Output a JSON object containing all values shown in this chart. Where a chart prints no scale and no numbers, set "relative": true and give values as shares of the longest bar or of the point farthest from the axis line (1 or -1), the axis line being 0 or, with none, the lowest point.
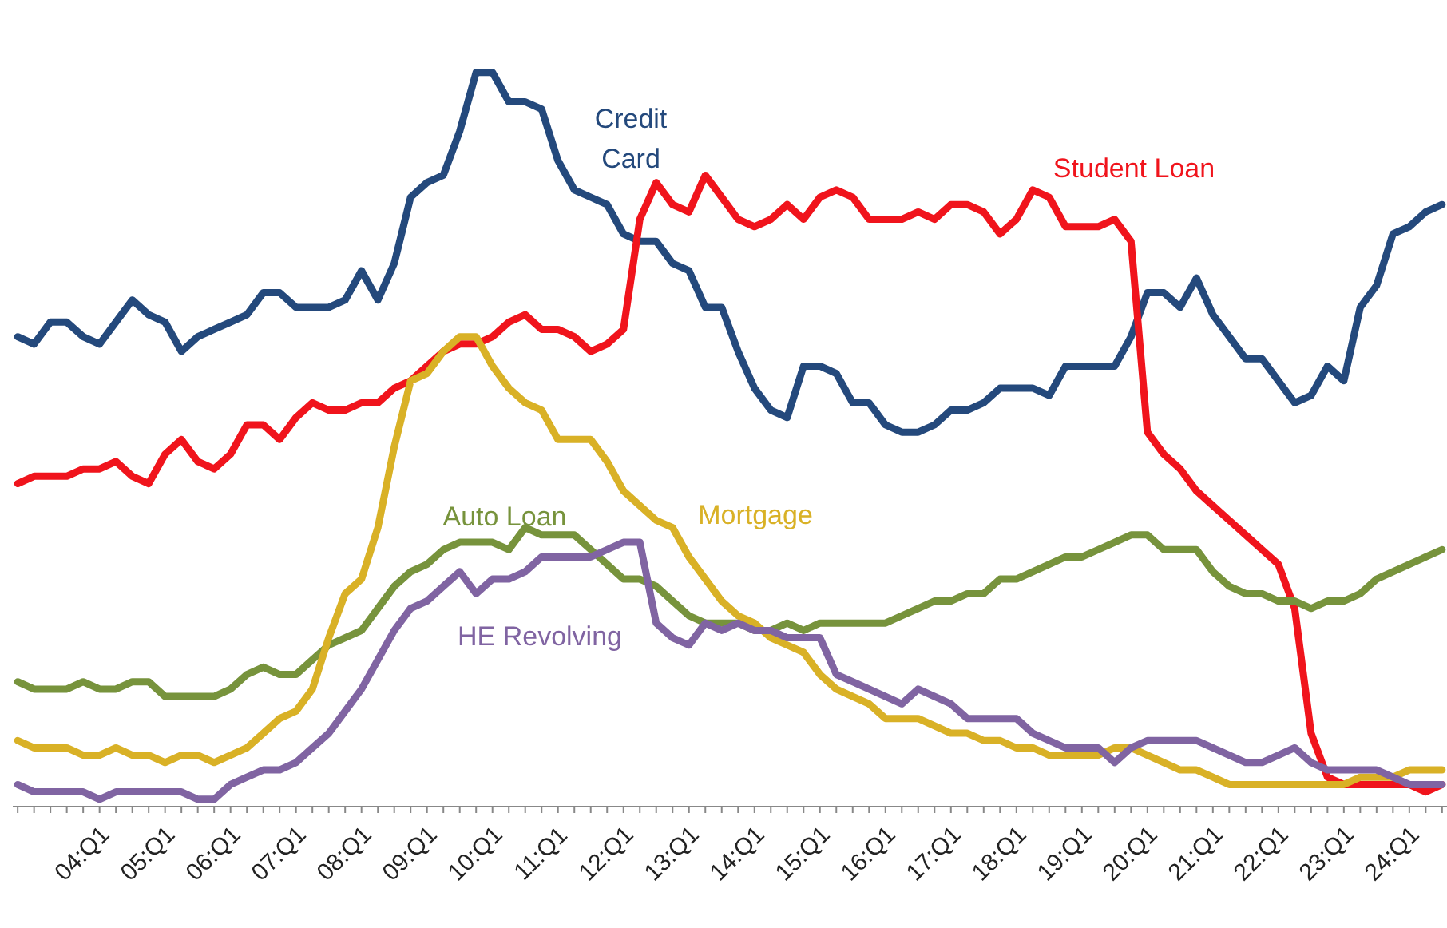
{
  "chart_data": {
    "type": "line",
    "relative": true,
    "categories": [
      null,
      null,
      null,
      null,
      "04:Q1",
      null,
      null,
      null,
      "05:Q1",
      null,
      null,
      null,
      "06:Q1",
      null,
      null,
      null,
      "07:Q1",
      null,
      null,
      null,
      "08:Q1",
      null,
      null,
      null,
      "09:Q1",
      null,
      null,
      null,
      "10:Q1",
      null,
      null,
      null,
      "11:Q1",
      null,
      null,
      null,
      "12:Q1",
      null,
      null,
      null,
      "13:Q1",
      null,
      null,
      null,
      "14:Q1",
      null,
      null,
      null,
      "15:Q1",
      null,
      null,
      null,
      "16:Q1",
      null,
      null,
      null,
      "17:Q1",
      null,
      null,
      null,
      "18:Q1",
      null,
      null,
      null,
      "19:Q1",
      null,
      null,
      null,
      "20:Q1",
      null,
      null,
      null,
      "21:Q1",
      null,
      null,
      null,
      "22:Q1",
      null,
      null,
      null,
      "23:Q1",
      null,
      null,
      null,
      "24:Q1",
      null,
      null,
      null
    ],
    "series": [
      {
        "name": "Credit Card",
        "color": "#24497c",
        "values": [
          0.64,
          0.63,
          0.66,
          0.66,
          0.64,
          0.63,
          0.66,
          0.69,
          0.67,
          0.66,
          0.62,
          0.64,
          0.65,
          0.66,
          0.67,
          0.7,
          0.7,
          0.68,
          0.68,
          0.68,
          0.69,
          0.73,
          0.69,
          0.74,
          0.83,
          0.85,
          0.86,
          0.92,
          1.0,
          1.0,
          0.96,
          0.96,
          0.95,
          0.88,
          0.84,
          0.83,
          0.82,
          0.78,
          0.77,
          0.77,
          0.74,
          0.73,
          0.68,
          0.68,
          0.62,
          0.57,
          0.54,
          0.53,
          0.6,
          0.6,
          0.59,
          0.55,
          0.55,
          0.52,
          0.51,
          0.51,
          0.52,
          0.54,
          0.54,
          0.55,
          0.57,
          0.57,
          0.57,
          0.56,
          0.6,
          0.6,
          0.6,
          0.6,
          0.64,
          0.7,
          0.7,
          0.68,
          0.72,
          0.67,
          0.64,
          0.61,
          0.61,
          0.58,
          0.55,
          0.56,
          0.6,
          0.58,
          0.68,
          0.71,
          0.78,
          0.79,
          0.81,
          0.82
        ]
      },
      {
        "name": "Student Loan",
        "color": "#f0141c",
        "values": [
          0.44,
          0.45,
          0.45,
          0.45,
          0.46,
          0.46,
          0.47,
          0.45,
          0.44,
          0.48,
          0.5,
          0.47,
          0.46,
          0.48,
          0.52,
          0.52,
          0.5,
          0.53,
          0.55,
          0.54,
          0.54,
          0.55,
          0.55,
          0.57,
          0.58,
          0.6,
          0.62,
          0.63,
          0.63,
          0.64,
          0.66,
          0.67,
          0.65,
          0.65,
          0.64,
          0.62,
          0.63,
          0.65,
          0.8,
          0.85,
          0.82,
          0.81,
          0.86,
          0.83,
          0.8,
          0.79,
          0.8,
          0.82,
          0.8,
          0.83,
          0.84,
          0.83,
          0.8,
          0.8,
          0.8,
          0.81,
          0.8,
          0.82,
          0.82,
          0.81,
          0.78,
          0.8,
          0.84,
          0.83,
          0.79,
          0.79,
          0.79,
          0.8,
          0.77,
          0.51,
          0.48,
          0.46,
          0.43,
          0.41,
          0.39,
          0.37,
          0.35,
          0.33,
          0.27,
          0.1,
          0.04,
          0.03,
          0.03,
          0.03,
          0.03,
          0.03,
          0.02,
          0.03
        ]
      },
      {
        "name": "Auto Loan",
        "color": "#77933c",
        "values": [
          0.17,
          0.16,
          0.16,
          0.16,
          0.17,
          0.16,
          0.16,
          0.17,
          0.17,
          0.15,
          0.15,
          0.15,
          0.15,
          0.16,
          0.18,
          0.19,
          0.18,
          0.18,
          0.2,
          0.22,
          0.23,
          0.24,
          0.27,
          0.3,
          0.32,
          0.33,
          0.35,
          0.36,
          0.36,
          0.36,
          0.35,
          0.38,
          0.37,
          0.37,
          0.37,
          0.35,
          0.33,
          0.31,
          0.31,
          0.3,
          0.28,
          0.26,
          0.25,
          0.25,
          0.25,
          0.24,
          0.24,
          0.25,
          0.24,
          0.25,
          0.25,
          0.25,
          0.25,
          0.25,
          0.26,
          0.27,
          0.28,
          0.28,
          0.29,
          0.29,
          0.31,
          0.31,
          0.32,
          0.33,
          0.34,
          0.34,
          0.35,
          0.36,
          0.37,
          0.37,
          0.35,
          0.35,
          0.35,
          0.32,
          0.3,
          0.29,
          0.29,
          0.28,
          0.28,
          0.27,
          0.28,
          0.28,
          0.29,
          0.31,
          0.32,
          0.33,
          0.34,
          0.35
        ]
      },
      {
        "name": "Mortgage",
        "color": "#d9b126",
        "values": [
          0.09,
          0.08,
          0.08,
          0.08,
          0.07,
          0.07,
          0.08,
          0.07,
          0.07,
          0.06,
          0.07,
          0.07,
          0.06,
          0.07,
          0.08,
          0.1,
          0.12,
          0.13,
          0.16,
          0.23,
          0.29,
          0.31,
          0.38,
          0.49,
          0.58,
          0.59,
          0.62,
          0.64,
          0.64,
          0.6,
          0.57,
          0.55,
          0.54,
          0.5,
          0.5,
          0.5,
          0.47,
          0.43,
          0.41,
          0.39,
          0.38,
          0.34,
          0.31,
          0.28,
          0.26,
          0.25,
          0.23,
          0.22,
          0.21,
          0.18,
          0.16,
          0.15,
          0.14,
          0.12,
          0.12,
          0.12,
          0.11,
          0.1,
          0.1,
          0.09,
          0.09,
          0.08,
          0.08,
          0.07,
          0.07,
          0.07,
          0.07,
          0.08,
          0.08,
          0.07,
          0.06,
          0.05,
          0.05,
          0.04,
          0.03,
          0.03,
          0.03,
          0.03,
          0.03,
          0.03,
          0.03,
          0.03,
          0.04,
          0.04,
          0.04,
          0.05,
          0.05,
          0.05
        ]
      },
      {
        "name": "HE Revolving",
        "color": "#8064a2",
        "values": [
          0.03,
          0.02,
          0.02,
          0.02,
          0.02,
          0.01,
          0.02,
          0.02,
          0.02,
          0.02,
          0.02,
          0.01,
          0.01,
          0.03,
          0.04,
          0.05,
          0.05,
          0.06,
          0.08,
          0.1,
          0.13,
          0.16,
          0.2,
          0.24,
          0.27,
          0.28,
          0.3,
          0.32,
          0.29,
          0.31,
          0.31,
          0.32,
          0.34,
          0.34,
          0.34,
          0.34,
          0.35,
          0.36,
          0.36,
          0.25,
          0.23,
          0.22,
          0.25,
          0.24,
          0.25,
          0.24,
          0.24,
          0.23,
          0.23,
          0.23,
          0.18,
          0.17,
          0.16,
          0.15,
          0.14,
          0.16,
          0.15,
          0.14,
          0.12,
          0.12,
          0.12,
          0.12,
          0.1,
          0.09,
          0.08,
          0.08,
          0.08,
          0.06,
          0.08,
          0.09,
          0.09,
          0.09,
          0.09,
          0.08,
          0.07,
          0.06,
          0.06,
          0.07,
          0.08,
          0.06,
          0.05,
          0.05,
          0.05,
          0.05,
          0.04,
          0.03,
          0.03,
          0.03
        ]
      }
    ]
  }
}
